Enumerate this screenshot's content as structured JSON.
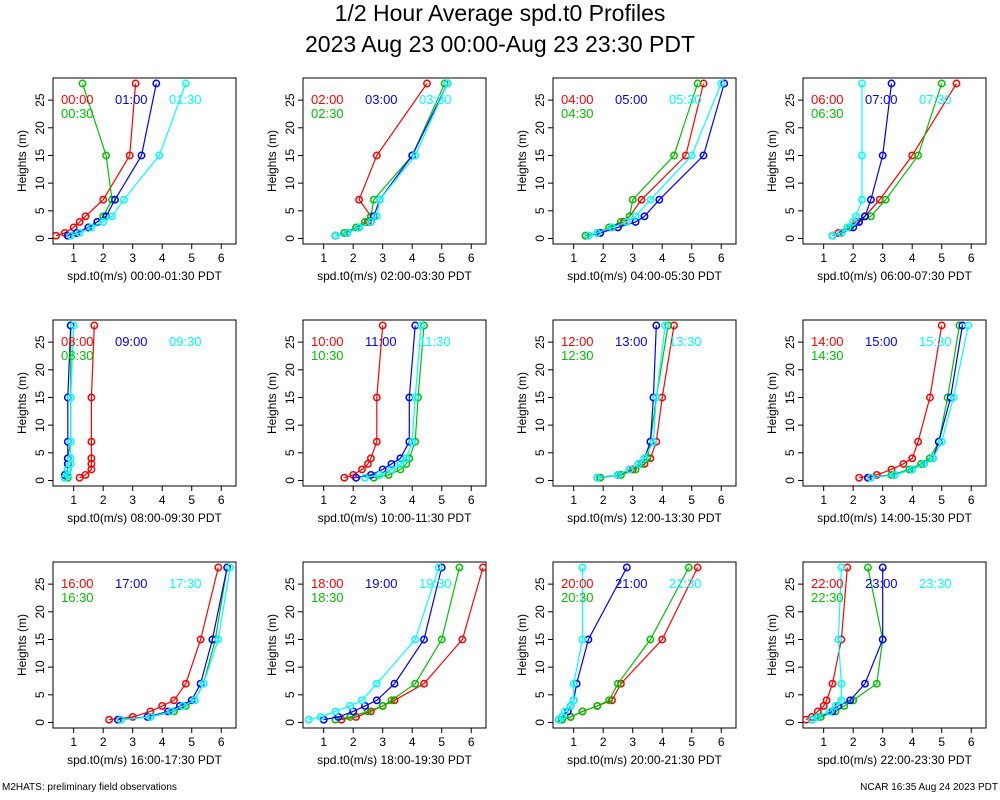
{
  "page": {
    "title": "1/2 Hour Average spd.t0 Profiles",
    "subtitle": "2023 Aug 23 00:00-Aug 23 23:30 PDT",
    "footer_left": "M2HATS: preliminary field observations",
    "footer_right": "NCAR 16:35 Aug 24 2023 PDT"
  },
  "colors": {
    "slot1": "#ff0000",
    "slot2": "#00c000",
    "slot3": "#0000ff",
    "slot4": "#00ffff"
  },
  "heights": [
    0.5,
    1,
    2,
    3,
    4,
    7,
    15,
    28
  ],
  "chart_data": [
    {
      "type": "line",
      "xlabel": "spd.t0(m/s) 00:00-01:30 PDT",
      "ylabel": "Heights (m)",
      "xlim": [
        0.3,
        6.5
      ],
      "ylim": [
        -1,
        29
      ],
      "x_ticks": [
        1,
        2,
        3,
        4,
        5,
        6
      ],
      "y_ticks": [
        0,
        5,
        10,
        15,
        20,
        25
      ],
      "series": [
        {
          "name": "00:00",
          "color": "#ff0000",
          "x": [
            0.4,
            0.7,
            1.0,
            1.2,
            1.4,
            2.0,
            2.9,
            3.1
          ]
        },
        {
          "name": "00:30",
          "color": "#00c000",
          "x": [
            0.9,
            1.1,
            1.5,
            1.8,
            2.0,
            2.3,
            2.1,
            1.3
          ]
        },
        {
          "name": "01:00",
          "color": "#0000ff",
          "x": [
            0.8,
            1.1,
            1.5,
            1.8,
            2.1,
            2.4,
            3.3,
            3.8
          ]
        },
        {
          "name": "01:30",
          "color": "#00ffff",
          "x": [
            0.9,
            1.2,
            1.6,
            2.0,
            2.3,
            2.7,
            3.9,
            4.8
          ]
        }
      ]
    },
    {
      "type": "line",
      "xlabel": "spd.t0(m/s) 02:00-03:30 PDT",
      "ylabel": "Heights (m)",
      "xlim": [
        0.3,
        6.5
      ],
      "ylim": [
        -1,
        29
      ],
      "x_ticks": [
        1,
        2,
        3,
        4,
        5,
        6
      ],
      "y_ticks": [
        0,
        5,
        10,
        15,
        20,
        25
      ],
      "series": [
        {
          "name": "02:00",
          "color": "#ff0000",
          "x": [
            1.4,
            1.8,
            2.2,
            2.5,
            2.6,
            2.2,
            2.8,
            4.5
          ]
        },
        {
          "name": "02:30",
          "color": "#00c000",
          "x": [
            1.4,
            1.7,
            2.1,
            2.4,
            2.6,
            2.7,
            4.0,
            5.1
          ]
        },
        {
          "name": "03:00",
          "color": "#0000ff",
          "x": [
            1.4,
            1.8,
            2.2,
            2.6,
            2.7,
            2.9,
            4.0,
            5.2
          ]
        },
        {
          "name": "03:30",
          "color": "#00ffff",
          "x": [
            1.4,
            1.8,
            2.2,
            2.6,
            2.8,
            2.9,
            4.1,
            5.2
          ]
        }
      ]
    },
    {
      "type": "line",
      "xlabel": "spd.t0(m/s) 04:00-05:30 PDT",
      "ylabel": "Heights (m)",
      "xlim": [
        0.3,
        6.5
      ],
      "ylim": [
        -1,
        29
      ],
      "x_ticks": [
        1,
        2,
        3,
        4,
        5,
        6
      ],
      "y_ticks": [
        0,
        5,
        10,
        15,
        20,
        25
      ],
      "series": [
        {
          "name": "04:00",
          "color": "#ff0000",
          "x": [
            1.4,
            1.9,
            2.3,
            2.7,
            2.9,
            3.3,
            4.8,
            5.4
          ]
        },
        {
          "name": "04:30",
          "color": "#00c000",
          "x": [
            1.4,
            1.8,
            2.2,
            2.6,
            2.9,
            3.0,
            4.4,
            5.2
          ]
        },
        {
          "name": "05:00",
          "color": "#0000ff",
          "x": [
            1.5,
            1.9,
            2.5,
            3.1,
            3.4,
            3.9,
            5.4,
            6.1
          ]
        },
        {
          "name": "05:30",
          "color": "#00ffff",
          "x": [
            1.5,
            1.8,
            2.3,
            2.8,
            3.1,
            3.6,
            5.0,
            6.0
          ]
        }
      ]
    },
    {
      "type": "line",
      "xlabel": "spd.t0(m/s) 06:00-07:30 PDT",
      "ylabel": "Heights (m)",
      "xlim": [
        0.3,
        6.5
      ],
      "ylim": [
        -1,
        29
      ],
      "x_ticks": [
        1,
        2,
        3,
        4,
        5,
        6
      ],
      "y_ticks": [
        0,
        5,
        10,
        15,
        20,
        25
      ],
      "series": [
        {
          "name": "06:00",
          "color": "#ff0000",
          "x": [
            1.3,
            1.5,
            1.8,
            2.1,
            2.4,
            2.9,
            4.0,
            5.5
          ]
        },
        {
          "name": "06:30",
          "color": "#00c000",
          "x": [
            1.3,
            1.6,
            1.9,
            2.2,
            2.6,
            3.1,
            4.2,
            5.0
          ]
        },
        {
          "name": "07:00",
          "color": "#0000ff",
          "x": [
            1.3,
            1.6,
            2.0,
            2.2,
            2.4,
            2.6,
            3.0,
            3.3
          ]
        },
        {
          "name": "07:30",
          "color": "#00ffff",
          "x": [
            1.3,
            1.6,
            1.8,
            2.0,
            2.1,
            2.3,
            2.3,
            2.3
          ]
        }
      ]
    },
    {
      "type": "line",
      "xlabel": "spd.t0(m/s) 08:00-09:30 PDT",
      "ylabel": "Heights (m)",
      "xlim": [
        0.3,
        6.5
      ],
      "ylim": [
        -1,
        29
      ],
      "x_ticks": [
        1,
        2,
        3,
        4,
        5,
        6
      ],
      "y_ticks": [
        0,
        5,
        10,
        15,
        20,
        25
      ],
      "series": [
        {
          "name": "08:00",
          "color": "#ff0000",
          "x": [
            1.2,
            1.4,
            1.6,
            1.6,
            1.6,
            1.6,
            1.6,
            1.7
          ]
        },
        {
          "name": "08:30",
          "color": "#00c000",
          "x": [
            0.8,
            0.8,
            0.8,
            0.8,
            0.8,
            0.9,
            0.9,
            0.9
          ]
        },
        {
          "name": "09:00",
          "color": "#0000ff",
          "x": [
            0.7,
            0.7,
            0.8,
            0.8,
            0.8,
            0.8,
            0.8,
            0.9
          ]
        },
        {
          "name": "09:30",
          "color": "#00ffff",
          "x": [
            0.7,
            0.8,
            0.8,
            0.9,
            0.9,
            0.9,
            0.9,
            1.0
          ]
        }
      ]
    },
    {
      "type": "line",
      "xlabel": "spd.t0(m/s) 10:00-11:30 PDT",
      "ylabel": "Heights (m)",
      "xlim": [
        0.3,
        6.5
      ],
      "ylim": [
        -1,
        29
      ],
      "x_ticks": [
        1,
        2,
        3,
        4,
        5,
        6
      ],
      "y_ticks": [
        0,
        5,
        10,
        15,
        20,
        25
      ],
      "series": [
        {
          "name": "10:00",
          "color": "#ff0000",
          "x": [
            1.7,
            2.0,
            2.3,
            2.5,
            2.6,
            2.8,
            2.8,
            3.0
          ]
        },
        {
          "name": "10:30",
          "color": "#00c000",
          "x": [
            2.7,
            3.2,
            3.6,
            3.8,
            3.9,
            4.1,
            4.2,
            4.4
          ]
        },
        {
          "name": "11:00",
          "color": "#0000ff",
          "x": [
            2.1,
            2.6,
            3.0,
            3.3,
            3.6,
            3.9,
            3.9,
            4.1
          ]
        },
        {
          "name": "11:30",
          "color": "#00ffff",
          "x": [
            2.4,
            2.9,
            3.3,
            3.6,
            3.8,
            4.0,
            4.1,
            4.3
          ]
        }
      ]
    },
    {
      "type": "line",
      "xlabel": "spd.t0(m/s) 12:00-13:30 PDT",
      "ylabel": "Heights (m)",
      "xlim": [
        0.3,
        6.5
      ],
      "ylim": [
        -1,
        29
      ],
      "x_ticks": [
        1,
        2,
        3,
        4,
        5,
        6
      ],
      "y_ticks": [
        0,
        5,
        10,
        15,
        20,
        25
      ],
      "series": [
        {
          "name": "12:00",
          "color": "#ff0000",
          "x": [
            1.9,
            2.5,
            3.0,
            3.4,
            3.6,
            3.8,
            4.0,
            4.4
          ]
        },
        {
          "name": "12:30",
          "color": "#00c000",
          "x": [
            1.9,
            2.6,
            3.1,
            3.3,
            3.5,
            3.6,
            3.8,
            4.2
          ]
        },
        {
          "name": "13:00",
          "color": "#0000ff",
          "x": [
            1.8,
            2.5,
            2.9,
            3.2,
            3.4,
            3.6,
            3.7,
            3.8
          ]
        },
        {
          "name": "13:30",
          "color": "#00ffff",
          "x": [
            1.8,
            2.5,
            2.9,
            3.2,
            3.4,
            3.7,
            3.8,
            4.1
          ]
        }
      ]
    },
    {
      "type": "line",
      "xlabel": "spd.t0(m/s) 14:00-15:30 PDT",
      "ylabel": "Heights (m)",
      "xlim": [
        0.3,
        6.5
      ],
      "ylim": [
        -1,
        29
      ],
      "x_ticks": [
        1,
        2,
        3,
        4,
        5,
        6
      ],
      "y_ticks": [
        0,
        5,
        10,
        15,
        20,
        25
      ],
      "series": [
        {
          "name": "14:00",
          "color": "#ff0000",
          "x": [
            2.2,
            2.8,
            3.3,
            3.7,
            4.0,
            4.2,
            4.6,
            5.0
          ]
        },
        {
          "name": "14:30",
          "color": "#00c000",
          "x": [
            2.5,
            3.3,
            3.9,
            4.3,
            4.6,
            4.9,
            5.2,
            5.6
          ]
        },
        {
          "name": "15:00",
          "color": "#0000ff",
          "x": [
            2.5,
            3.4,
            4.0,
            4.4,
            4.7,
            4.9,
            5.3,
            5.7
          ]
        },
        {
          "name": "15:30",
          "color": "#00ffff",
          "x": [
            2.6,
            3.4,
            4.0,
            4.4,
            4.7,
            5.0,
            5.4,
            5.9
          ]
        }
      ]
    },
    {
      "type": "line",
      "xlabel": "spd.t0(m/s) 16:00-17:30 PDT",
      "ylabel": "Heights (m)",
      "xlim": [
        0.3,
        6.5
      ],
      "ylim": [
        -1,
        29
      ],
      "x_ticks": [
        1,
        2,
        3,
        4,
        5,
        6
      ],
      "y_ticks": [
        0,
        5,
        10,
        15,
        20,
        25
      ],
      "series": [
        {
          "name": "16:00",
          "color": "#ff0000",
          "x": [
            2.2,
            3.0,
            3.6,
            4.0,
            4.4,
            4.8,
            5.3,
            5.9
          ]
        },
        {
          "name": "16:30",
          "color": "#00c000",
          "x": [
            2.6,
            3.6,
            4.4,
            4.8,
            5.1,
            5.4,
            5.8,
            6.2
          ]
        },
        {
          "name": "17:00",
          "color": "#0000ff",
          "x": [
            2.5,
            3.5,
            4.2,
            4.6,
            5.0,
            5.3,
            5.7,
            6.2
          ]
        },
        {
          "name": "17:30",
          "color": "#00ffff",
          "x": [
            2.6,
            3.6,
            4.3,
            4.7,
            5.1,
            5.4,
            5.9,
            6.3
          ]
        }
      ]
    },
    {
      "type": "line",
      "xlabel": "spd.t0(m/s) 18:00-19:30 PDT",
      "ylabel": "Heights (m)",
      "xlim": [
        0.3,
        6.5
      ],
      "ylim": [
        -1,
        29
      ],
      "x_ticks": [
        1,
        2,
        3,
        4,
        5,
        6
      ],
      "y_ticks": [
        0,
        5,
        10,
        15,
        20,
        25
      ],
      "series": [
        {
          "name": "18:00",
          "color": "#ff0000",
          "x": [
            1.6,
            2.1,
            2.6,
            3.0,
            3.4,
            4.4,
            5.7,
            6.4
          ]
        },
        {
          "name": "18:30",
          "color": "#00c000",
          "x": [
            1.4,
            1.9,
            2.5,
            3.0,
            3.3,
            4.1,
            5.0,
            5.6
          ]
        },
        {
          "name": "19:00",
          "color": "#0000ff",
          "x": [
            1.0,
            1.5,
            2.0,
            2.4,
            2.8,
            3.4,
            4.4,
            5.0
          ]
        },
        {
          "name": "19:30",
          "color": "#00ffff",
          "x": [
            0.5,
            0.9,
            1.4,
            1.9,
            2.3,
            2.8,
            4.1,
            4.9
          ]
        }
      ]
    },
    {
      "type": "line",
      "xlabel": "spd.t0(m/s) 20:00-21:30 PDT",
      "ylabel": "Heights (m)",
      "xlim": [
        0.3,
        6.5
      ],
      "ylim": [
        -1,
        29
      ],
      "x_ticks": [
        1,
        2,
        3,
        4,
        5,
        6
      ],
      "y_ticks": [
        0,
        5,
        10,
        15,
        20,
        25
      ],
      "series": [
        {
          "name": "20:00",
          "color": "#ff0000",
          "x": [
            0.6,
            0.9,
            1.3,
            1.8,
            2.3,
            2.6,
            4.0,
            5.2
          ]
        },
        {
          "name": "20:30",
          "color": "#00c000",
          "x": [
            0.6,
            0.9,
            1.3,
            1.8,
            2.2,
            2.5,
            3.6,
            4.9
          ]
        },
        {
          "name": "21:00",
          "color": "#0000ff",
          "x": [
            0.5,
            0.6,
            0.8,
            0.9,
            1.0,
            1.1,
            1.5,
            2.8
          ]
        },
        {
          "name": "21:30",
          "color": "#00ffff",
          "x": [
            0.5,
            0.6,
            0.7,
            0.9,
            1.0,
            1.0,
            1.3,
            1.3
          ]
        }
      ]
    },
    {
      "type": "line",
      "xlabel": "spd.t0(m/s) 22:00-23:30 PDT",
      "ylabel": "Heights (m)",
      "xlim": [
        0.3,
        6.5
      ],
      "ylim": [
        -1,
        29
      ],
      "x_ticks": [
        1,
        2,
        3,
        4,
        5,
        6
      ],
      "y_ticks": [
        0,
        5,
        10,
        15,
        20,
        25
      ],
      "series": [
        {
          "name": "22:00",
          "color": "#ff0000",
          "x": [
            0.4,
            0.6,
            0.8,
            1.0,
            1.1,
            1.3,
            1.6,
            1.8
          ]
        },
        {
          "name": "22:30",
          "color": "#00c000",
          "x": [
            0.6,
            0.9,
            1.4,
            1.7,
            2.0,
            2.8,
            3.0,
            2.5
          ]
        },
        {
          "name": "23:00",
          "color": "#0000ff",
          "x": [
            0.6,
            0.8,
            1.3,
            1.5,
            1.9,
            2.4,
            3.0,
            3.0
          ]
        },
        {
          "name": "23:30",
          "color": "#00ffff",
          "x": [
            0.6,
            0.8,
            1.2,
            1.4,
            1.6,
            1.6,
            1.5,
            1.6
          ]
        }
      ]
    }
  ]
}
